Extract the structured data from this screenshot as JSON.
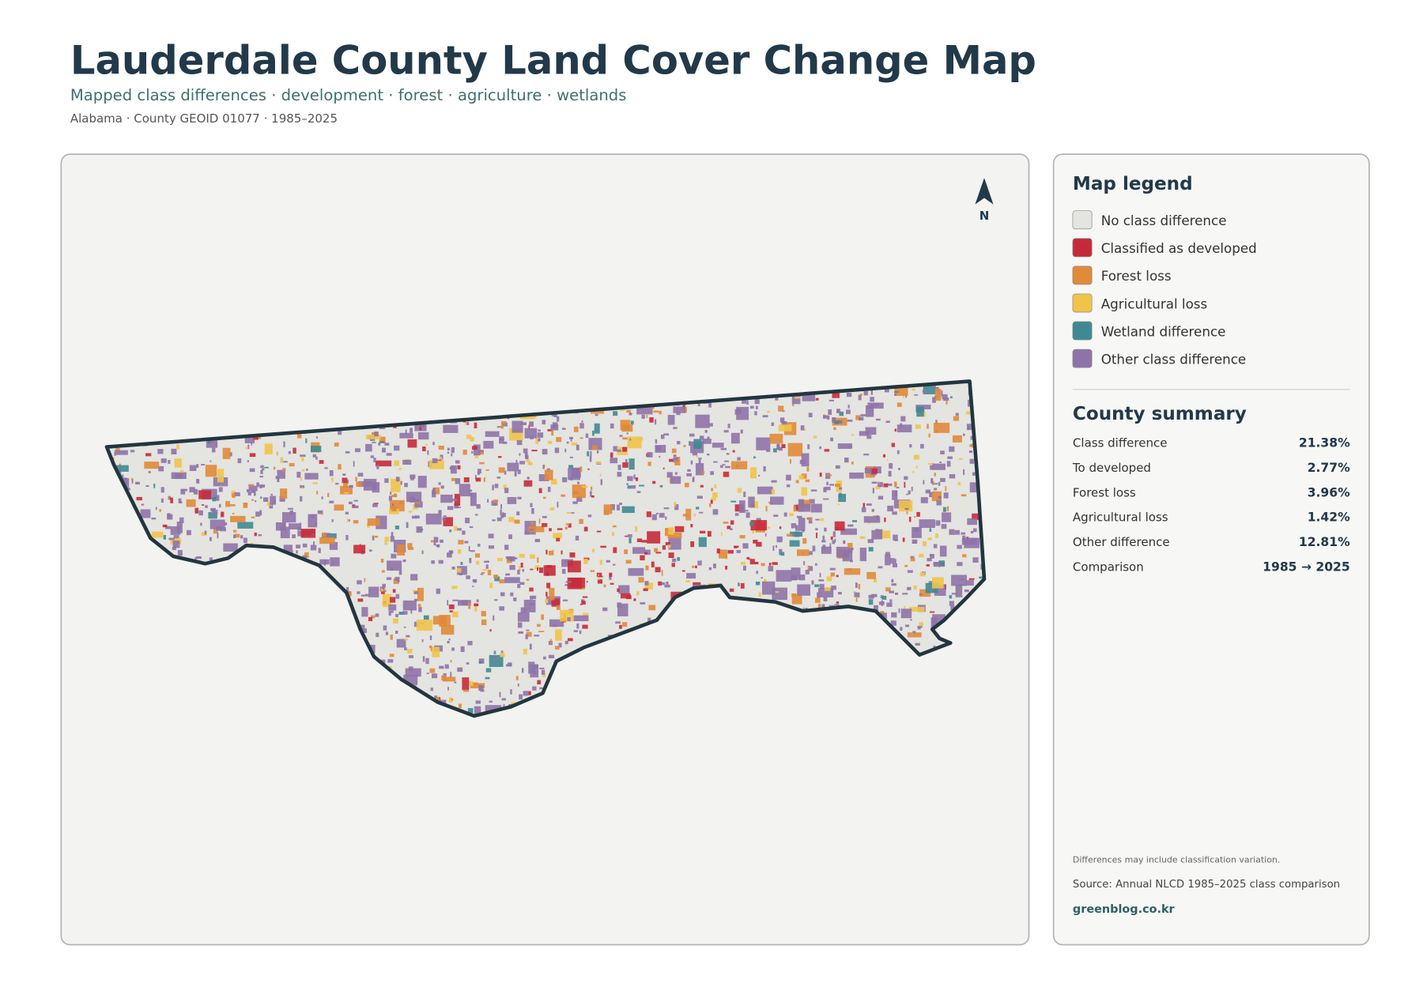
{
  "header": {
    "title": "Lauderdale County Land Cover Change Map",
    "subtitle": "Mapped class differences · development · forest · agriculture · wetlands",
    "meta": "Alabama · County GEOID 01077 · 1985–2025"
  },
  "map": {
    "north": "N"
  },
  "legend": {
    "title": "Map legend",
    "items": [
      {
        "label": "No class difference",
        "color": "#e4e4e0"
      },
      {
        "label": "Classified as developed",
        "color": "#c62a38"
      },
      {
        "label": "Forest loss",
        "color": "#e08a3a"
      },
      {
        "label": "Agricultural loss",
        "color": "#f0c34a"
      },
      {
        "label": "Wetland difference",
        "color": "#3f8a92"
      },
      {
        "label": "Other class difference",
        "color": "#8e73a8"
      }
    ]
  },
  "summary": {
    "title": "County summary",
    "rows": [
      [
        "Class difference",
        "21.38%"
      ],
      [
        "To developed",
        "2.77%"
      ],
      [
        "Forest loss",
        "3.96%"
      ],
      [
        "Agricultural loss",
        "1.42%"
      ],
      [
        "Other difference",
        "12.81%"
      ],
      [
        "Comparison",
        "1985 → 2025"
      ]
    ]
  },
  "footer": {
    "note": "Differences may include classification variation.",
    "source": "Source: Annual NLCD 1985–2025 class comparison",
    "site": "greenblog.co.kr"
  }
}
